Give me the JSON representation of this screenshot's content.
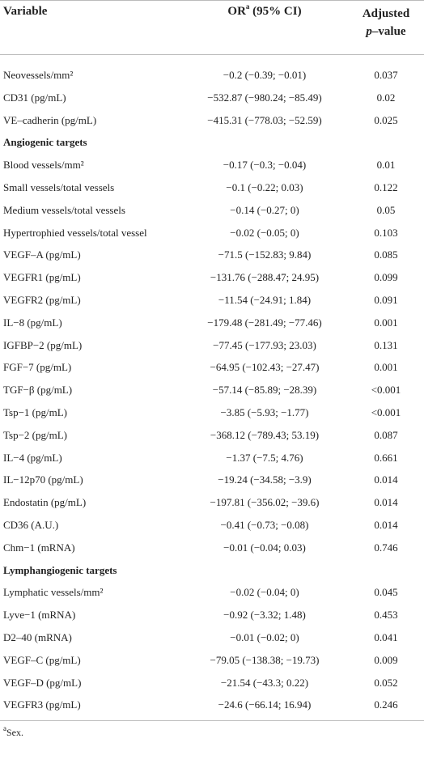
{
  "table": {
    "header": {
      "variable": "Variable",
      "or": "OR",
      "or_sup": "a",
      "or_rest": " (95% CI)",
      "p_line1": "Adjusted",
      "p_italic": "p",
      "p_rest": "–value"
    },
    "rows": [
      [
        "Neovessels/mm²",
        "−0.2 (−0.39; −0.01)",
        "0.037"
      ],
      [
        "CD31 (pg/mL)",
        "−532.87 (−980.24; −85.49)",
        "0.02"
      ],
      [
        "VE–cadherin (pg/mL)",
        "−415.31 (−778.03; −52.59)",
        "0.025"
      ],
      {
        "section": "Angiogenic targets"
      },
      [
        "Blood vessels/mm²",
        "−0.17 (−0.3; −0.04)",
        "0.01"
      ],
      [
        "Small vessels/total vessels",
        "−0.1 (−0.22; 0.03)",
        "0.122"
      ],
      [
        "Medium vessels/total vessels",
        "−0.14 (−0.27; 0)",
        "0.05"
      ],
      [
        "Hypertrophied vessels/total vessel",
        "−0.02 (−0.05; 0)",
        "0.103"
      ],
      [
        "VEGF–A (pg/mL)",
        "−71.5 (−152.83; 9.84)",
        "0.085"
      ],
      [
        "VEGFR1 (pg/mL)",
        "−131.76 (−288.47; 24.95)",
        "0.099"
      ],
      [
        "VEGFR2 (pg/mL)",
        "−11.54 (−24.91; 1.84)",
        "0.091"
      ],
      [
        "IL−8 (pg/mL)",
        "−179.48 (−281.49; −77.46)",
        "0.001"
      ],
      [
        "IGFBP−2 (pg/mL)",
        "−77.45 (−177.93; 23.03)",
        "0.131"
      ],
      [
        "FGF−7 (pg/mL)",
        "−64.95 (−102.43; −27.47)",
        "0.001"
      ],
      [
        "TGF−β (pg/mL)",
        "−57.14 (−85.89; −28.39)",
        "<0.001"
      ],
      [
        "Tsp−1 (pg/mL)",
        "−3.85 (−5.93; −1.77)",
        "<0.001"
      ],
      [
        "Tsp−2 (pg/mL)",
        "−368.12 (−789.43; 53.19)",
        "0.087"
      ],
      [
        "IL−4 (pg/mL)",
        "−1.37 (−7.5; 4.76)",
        "0.661"
      ],
      [
        "IL−12p70 (pg/mL)",
        "−19.24 (−34.58; −3.9)",
        "0.014"
      ],
      [
        "Endostatin (pg/mL)",
        "−197.81 (−356.02; −39.6)",
        "0.014"
      ],
      [
        "CD36 (A.U.)",
        "−0.41 (−0.73; −0.08)",
        "0.014"
      ],
      [
        "Chm−1 (mRNA)",
        "−0.01 (−0.04; 0.03)",
        "0.746"
      ],
      {
        "section": "Lymphangiogenic targets"
      },
      [
        "Lymphatic vessels/mm²",
        "−0.02 (−0.04; 0)",
        "0.045"
      ],
      [
        "Lyve−1 (mRNA)",
        "−0.92 (−3.32; 1.48)",
        "0.453"
      ],
      [
        "D2–40 (mRNA)",
        "−0.01 (−0.02; 0)",
        "0.041"
      ],
      [
        "VEGF–C (pg/mL)",
        "−79.05 (−138.38; −19.73)",
        "0.009"
      ],
      [
        "VEGF–D (pg/mL)",
        "−21.54 (−43.3; 0.22)",
        "0.052"
      ],
      [
        "VEGFR3 (pg/mL)",
        "−24.6 (−66.14; 16.94)",
        "0.246"
      ]
    ],
    "footnote": {
      "sup": "a",
      "text": "Sex."
    }
  }
}
